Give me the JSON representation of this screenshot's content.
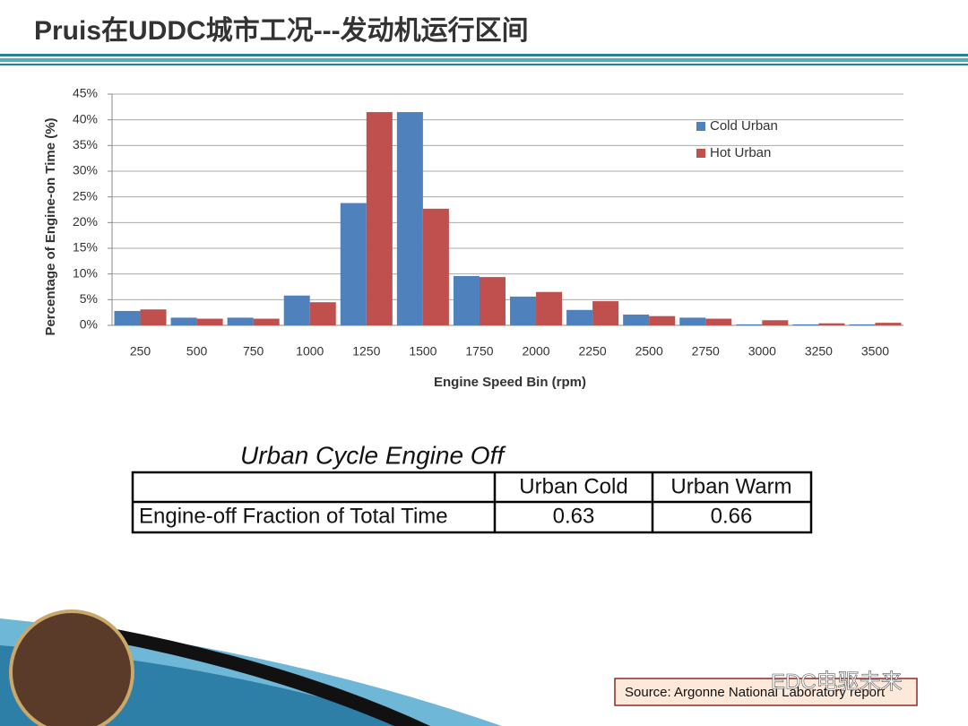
{
  "slide_title": "Pruis在UDDC城市工况---发动机运行区间",
  "chart_data": {
    "type": "bar",
    "x_label": "Engine Speed Bin (rpm)",
    "y_label": "Percentage of Engine-on Time (%)",
    "categories": [
      "250",
      "500",
      "750",
      "1000",
      "1250",
      "1500",
      "1750",
      "2000",
      "2250",
      "2500",
      "2750",
      "3000",
      "3250",
      "3500"
    ],
    "series": [
      {
        "name": "Cold Urban",
        "color": "#4f81bd",
        "values": [
          2.8,
          1.5,
          1.5,
          5.8,
          23.8,
          41.5,
          9.6,
          5.6,
          3.0,
          2.1,
          1.5,
          0.2,
          0.2,
          0.2
        ]
      },
      {
        "name": "Hot Urban",
        "color": "#c0504d",
        "values": [
          3.1,
          1.3,
          1.3,
          4.5,
          41.5,
          22.7,
          9.4,
          6.5,
          4.7,
          1.8,
          1.3,
          1.0,
          0.4,
          0.5
        ]
      }
    ],
    "ylim": [
      0,
      45
    ],
    "yticks": [
      {
        "value": 0,
        "label": "0%"
      },
      {
        "value": 5,
        "label": "5%"
      },
      {
        "value": 10,
        "label": "10%"
      },
      {
        "value": 15,
        "label": "15%"
      },
      {
        "value": 20,
        "label": "20%"
      },
      {
        "value": 25,
        "label": "25%"
      },
      {
        "value": 30,
        "label": "30%"
      },
      {
        "value": 35,
        "label": "35%"
      },
      {
        "value": 40,
        "label": "40%"
      },
      {
        "value": 45,
        "label": "45%"
      }
    ],
    "grid": true,
    "legend": "upper right"
  },
  "table": {
    "caption": "Urban Cycle Engine Off",
    "header": [
      "Urban Cold",
      "Urban Warm"
    ],
    "rows": [
      [
        "Engine-off Fraction of Total Time",
        0.63,
        0.66
      ]
    ]
  },
  "source": "Source: Argonne National Laboratory report",
  "watermark": "EDC电驱未来"
}
